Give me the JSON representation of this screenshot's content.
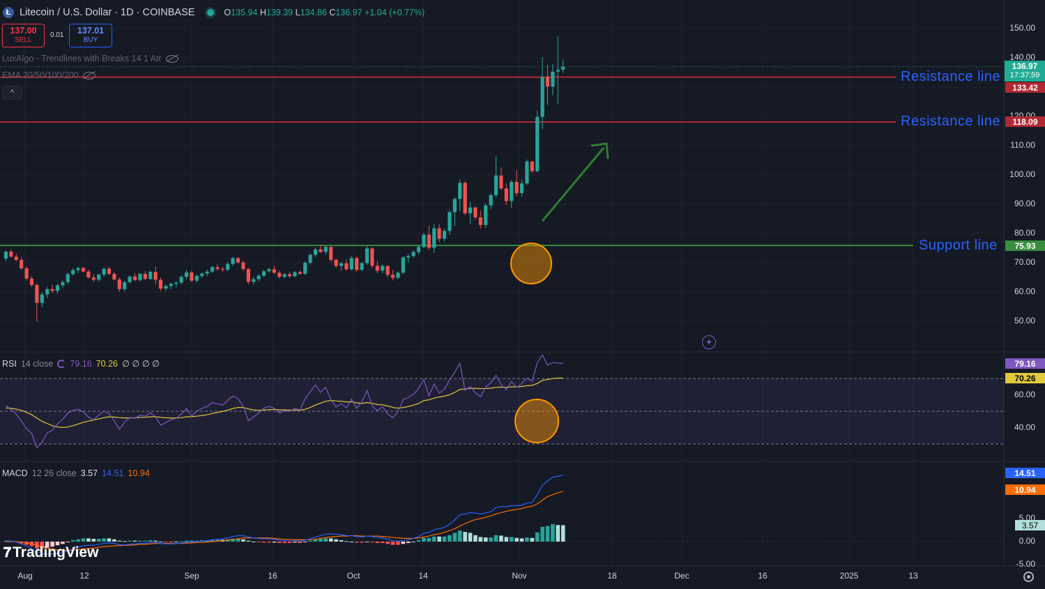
{
  "header": {
    "symbol_title": "Litecoin / U.S. Dollar · 1D · COINBASE",
    "logo_letter": "Ł",
    "ohlc": {
      "o_label": "O",
      "o": "135.94",
      "h_label": "H",
      "h": "139.39",
      "l_label": "L",
      "l": "134.86",
      "c_label": "C",
      "c": "136.97",
      "change": "+1.04 (+0.77%)"
    }
  },
  "trade": {
    "sell_price": "137.00",
    "sell_label": "SELL",
    "spread": "0.01",
    "buy_price": "137.01",
    "buy_label": "BUY"
  },
  "indicators": {
    "luxalgo": "LuxAlgo - Trendlines with Breaks 14 1 Atr",
    "ema": "EMA 20/50/100/200",
    "collapse_glyph": "^"
  },
  "rsi_panel": {
    "name": "RSI",
    "params": "14 close",
    "value1": "79.16",
    "value2": "70.26",
    "extras": "∅ ∅ ∅ ∅"
  },
  "macd_panel": {
    "name": "MACD",
    "params": "12 26 close",
    "hist": "3.57",
    "macd": "14.51",
    "signal": "10.94"
  },
  "annotations": {
    "resistance_1": "Resistance line",
    "resistance_2": "Resistance line",
    "support": "Support line"
  },
  "price_tags": {
    "last_price": "136.97",
    "countdown": "17:37:59",
    "res1": "133.42",
    "res2": "118.09",
    "support": "75.93",
    "rsi_val": "79.16",
    "rsi_ma": "70.26",
    "macd_line": "14.51",
    "macd_signal": "10.94",
    "macd_hist": "3.57"
  },
  "price_axis": [
    "150.00",
    "140.00",
    "120.00",
    "110.00",
    "100.00",
    "90.00",
    "80.00",
    "70.00",
    "60.00",
    "50.00"
  ],
  "rsi_axis": [
    "60.00",
    "40.00"
  ],
  "macd_axis": [
    "5.00",
    "0.00",
    "-5.00"
  ],
  "time_axis": [
    "Aug",
    "12",
    "Sep",
    "16",
    "Oct",
    "14",
    "Nov",
    "18",
    "Dec",
    "16",
    "2025",
    "13"
  ],
  "watermark": "TradingView",
  "colors": {
    "background": "#161a25",
    "up": "#26a69a",
    "down": "#ef5350",
    "resistance": "#b22833",
    "support": "#388e3c",
    "annotation": "#2962ff",
    "rsi": "#7e57c2",
    "rsi_ma": "#e0c93b",
    "macd": "#2962ff",
    "signal": "#ff6d00",
    "highlight": "#ff9800"
  },
  "chart_data": {
    "type": "candlestick",
    "symbol": "LTC/USD",
    "timeframe": "1D",
    "price_ylim": [
      45,
      152
    ],
    "levels": {
      "resistance": [
        133.42,
        118.09
      ],
      "support": [
        75.93
      ]
    },
    "candles": [
      [
        71.4,
        74.2,
        70.6,
        73.8
      ],
      [
        73.8,
        74.6,
        71.8,
        72.1
      ],
      [
        72.1,
        73.2,
        70.4,
        71.0
      ],
      [
        71.0,
        72.0,
        67.6,
        68.1
      ],
      [
        68.1,
        68.8,
        63.9,
        64.6
      ],
      [
        64.6,
        65.4,
        61.8,
        62.4
      ],
      [
        62.4,
        62.9,
        50.0,
        56.3
      ],
      [
        56.3,
        60.0,
        54.8,
        59.2
      ],
      [
        59.2,
        61.8,
        58.0,
        61.0
      ],
      [
        61.0,
        62.5,
        59.6,
        60.4
      ],
      [
        60.4,
        62.9,
        59.4,
        62.3
      ],
      [
        62.3,
        64.0,
        61.5,
        63.4
      ],
      [
        63.4,
        66.7,
        62.8,
        66.1
      ],
      [
        66.1,
        68.2,
        65.6,
        67.5
      ],
      [
        67.5,
        68.8,
        66.4,
        68.2
      ],
      [
        68.2,
        68.6,
        66.8,
        67.0
      ],
      [
        67.0,
        67.6,
        64.6,
        65.0
      ],
      [
        65.0,
        66.1,
        63.5,
        64.2
      ],
      [
        64.2,
        66.3,
        63.6,
        66.0
      ],
      [
        66.0,
        68.4,
        65.2,
        68.0
      ],
      [
        68.0,
        68.7,
        65.7,
        66.2
      ],
      [
        66.2,
        66.9,
        63.9,
        64.3
      ],
      [
        64.3,
        64.9,
        60.0,
        61.0
      ],
      [
        61.0,
        63.9,
        60.2,
        63.4
      ],
      [
        63.4,
        65.8,
        62.9,
        65.3
      ],
      [
        65.3,
        66.5,
        63.7,
        64.1
      ],
      [
        64.1,
        66.5,
        63.6,
        66.2
      ],
      [
        66.2,
        67.1,
        64.1,
        64.5
      ],
      [
        64.5,
        67.4,
        64.0,
        66.9
      ],
      [
        66.9,
        68.8,
        62.6,
        64.2
      ],
      [
        64.2,
        64.9,
        60.4,
        61.2
      ],
      [
        61.2,
        62.6,
        60.4,
        62.1
      ],
      [
        62.1,
        63.3,
        60.9,
        62.8
      ],
      [
        62.8,
        63.7,
        61.6,
        63.2
      ],
      [
        63.2,
        65.8,
        62.7,
        65.2
      ],
      [
        65.2,
        67.6,
        64.3,
        66.7
      ],
      [
        66.7,
        67.3,
        63.4,
        63.9
      ],
      [
        63.9,
        66.1,
        63.3,
        65.5
      ],
      [
        65.5,
        66.7,
        64.8,
        66.3
      ],
      [
        66.3,
        67.7,
        65.4,
        67.0
      ],
      [
        67.0,
        69.0,
        66.6,
        68.5
      ],
      [
        68.5,
        69.5,
        67.2,
        67.9
      ],
      [
        67.9,
        68.6,
        66.8,
        67.6
      ],
      [
        67.6,
        70.2,
        67.1,
        69.6
      ],
      [
        69.6,
        72.1,
        68.9,
        71.6
      ],
      [
        71.6,
        72.0,
        69.7,
        70.1
      ],
      [
        70.1,
        70.8,
        67.2,
        67.9
      ],
      [
        67.9,
        68.3,
        62.6,
        63.5
      ],
      [
        63.5,
        65.2,
        62.4,
        64.4
      ],
      [
        64.4,
        66.1,
        63.7,
        65.6
      ],
      [
        65.6,
        67.6,
        65.0,
        67.1
      ],
      [
        67.1,
        68.3,
        66.6,
        67.8
      ],
      [
        67.8,
        69.0,
        66.1,
        66.6
      ],
      [
        66.6,
        67.3,
        64.7,
        65.2
      ],
      [
        65.2,
        66.5,
        64.6,
        66.1
      ],
      [
        66.1,
        66.9,
        64.8,
        65.4
      ],
      [
        65.4,
        67.1,
        65.0,
        66.8
      ],
      [
        66.8,
        67.3,
        65.9,
        66.2
      ],
      [
        66.2,
        70.5,
        65.8,
        70.0
      ],
      [
        70.0,
        73.2,
        69.4,
        72.7
      ],
      [
        72.7,
        75.2,
        71.9,
        74.6
      ],
      [
        74.6,
        76.0,
        73.2,
        73.7
      ],
      [
        73.7,
        75.8,
        72.8,
        75.4
      ],
      [
        75.4,
        75.6,
        70.3,
        71.0
      ],
      [
        71.0,
        71.5,
        68.2,
        68.9
      ],
      [
        68.9,
        70.3,
        67.2,
        69.8
      ],
      [
        69.8,
        71.1,
        67.3,
        67.8
      ],
      [
        67.8,
        72.3,
        67.2,
        71.6
      ],
      [
        71.6,
        72.1,
        66.9,
        67.6
      ],
      [
        67.6,
        70.3,
        67.1,
        69.9
      ],
      [
        69.9,
        75.6,
        69.3,
        74.9
      ],
      [
        74.9,
        75.3,
        68.2,
        69.0
      ],
      [
        69.0,
        70.6,
        66.5,
        67.3
      ],
      [
        67.3,
        69.4,
        66.4,
        68.9
      ],
      [
        68.9,
        69.2,
        65.1,
        65.9
      ],
      [
        65.9,
        67.6,
        64.0,
        64.9
      ],
      [
        64.9,
        67.1,
        64.4,
        66.6
      ],
      [
        66.6,
        72.3,
        66.1,
        71.8
      ],
      [
        71.8,
        73.0,
        70.0,
        72.3
      ],
      [
        72.3,
        74.4,
        71.6,
        73.7
      ],
      [
        73.7,
        76.2,
        72.8,
        75.4
      ],
      [
        75.4,
        80.2,
        75.0,
        79.6
      ],
      [
        79.6,
        82.7,
        74.4,
        75.1
      ],
      [
        75.1,
        83.4,
        73.4,
        81.8
      ],
      [
        81.8,
        83.2,
        77.1,
        78.2
      ],
      [
        78.2,
        81.6,
        77.3,
        80.9
      ],
      [
        80.9,
        88.1,
        79.6,
        87.3
      ],
      [
        87.3,
        92.4,
        82.6,
        91.8
      ],
      [
        91.8,
        98.6,
        87.6,
        97.3
      ],
      [
        97.3,
        97.9,
        86.2,
        86.9
      ],
      [
        86.9,
        90.8,
        83.2,
        88.9
      ],
      [
        88.9,
        89.3,
        84.8,
        85.5
      ],
      [
        85.5,
        87.8,
        81.6,
        82.9
      ],
      [
        82.9,
        90.4,
        81.9,
        89.6
      ],
      [
        89.6,
        93.8,
        88.2,
        93.1
      ],
      [
        93.1,
        106.5,
        92.2,
        99.8
      ],
      [
        99.8,
        102.6,
        94.8,
        95.4
      ],
      [
        95.4,
        97.1,
        89.8,
        91.1
      ],
      [
        91.1,
        98.3,
        88.7,
        97.6
      ],
      [
        97.6,
        101.7,
        92.8,
        93.8
      ],
      [
        93.8,
        98.3,
        92.6,
        97.1
      ],
      [
        97.1,
        105.3,
        96.5,
        104.6
      ],
      [
        104.6,
        104.8,
        100.6,
        101.3
      ],
      [
        101.3,
        121.9,
        100.9,
        119.8
      ],
      [
        119.8,
        140.2,
        115.6,
        133.5
      ],
      [
        133.5,
        137.6,
        124.0,
        130.2
      ],
      [
        130.2,
        137.8,
        127.2,
        135.3
      ],
      [
        135.3,
        147.3,
        124.1,
        135.9
      ],
      [
        135.94,
        139.39,
        134.86,
        136.97
      ]
    ],
    "rsi": {
      "name": "RSI 14 close",
      "ylim": [
        20,
        95
      ],
      "bands": [
        70,
        50,
        30
      ],
      "rsi": [
        53.6,
        51.0,
        48.2,
        43.9,
        39.3,
        36.4,
        27.6,
        31.1,
        36.8,
        38.4,
        42.3,
        45.1,
        48.8,
        50.6,
        51.2,
        49.6,
        46.4,
        44.7,
        47.7,
        50.1,
        48.6,
        44.2,
        39.0,
        43.3,
        46.2,
        45.7,
        47.5,
        47.0,
        49.0,
        46.8,
        41.5,
        43.1,
        44.8,
        45.7,
        48.3,
        51.6,
        47.0,
        50.0,
        51.7,
        52.9,
        55.2,
        54.6,
        53.7,
        56.8,
        59.3,
        57.6,
        53.1,
        44.3,
        46.5,
        49.1,
        51.9,
        53.0,
        51.9,
        49.1,
        50.4,
        49.8,
        51.8,
        50.7,
        57.6,
        62.0,
        66.0,
        61.6,
        64.5,
        57.0,
        52.6,
        54.7,
        52.0,
        57.4,
        51.8,
        55.9,
        62.6,
        53.2,
        50.4,
        52.8,
        48.3,
        46.0,
        49.8,
        57.1,
        58.4,
        60.3,
        63.9,
        69.5,
        59.5,
        66.6,
        61.1,
        63.6,
        68.8,
        73.9,
        79.3,
        62.8,
        65.1,
        61.3,
        58.9,
        64.8,
        67.5,
        71.9,
        66.3,
        63.1,
        68.1,
        64.5,
        67.0,
        70.2,
        68.3,
        79.6,
        84.3,
        78.1,
        79.7,
        79.4,
        79.16
      ],
      "rsi_ma": [
        52.0,
        51.8,
        51.3,
        50.5,
        49.3,
        47.9,
        45.8,
        43.9,
        42.5,
        41.2,
        40.4,
        40.1,
        40.4,
        41.2,
        42.2,
        43.2,
        44.0,
        44.6,
        45.3,
        46.1,
        46.6,
        46.5,
        46.1,
        45.9,
        45.9,
        46.0,
        46.2,
        46.3,
        46.6,
        46.7,
        46.3,
        46.0,
        45.9,
        45.9,
        46.1,
        46.6,
        46.7,
        47.0,
        47.4,
        47.9,
        48.6,
        49.3,
        49.9,
        50.7,
        51.7,
        52.3,
        52.3,
        51.4,
        50.8,
        50.6,
        50.7,
        51.0,
        51.1,
        50.9,
        50.8,
        50.7,
        50.7,
        50.6,
        51.2,
        52.3,
        53.8,
        54.9,
        56.1,
        56.6,
        56.3,
        56.1,
        55.7,
        55.8,
        55.1,
        54.8,
        55.3,
        54.8,
        54.1,
        53.9,
        53.2,
        52.3,
        51.9,
        52.3,
        52.9,
        53.7,
        54.8,
        56.5,
        57.0,
        58.0,
        58.7,
        59.2,
        60.1,
        61.5,
        63.3,
        63.6,
        64.0,
        64.0,
        63.8,
        63.9,
        64.1,
        64.6,
        64.7,
        64.6,
        64.9,
        64.9,
        65.1,
        65.6,
        65.8,
        67.0,
        68.8,
        69.4,
        70.0,
        70.3,
        70.26
      ]
    },
    "macd": {
      "name": "MACD 12 26 close",
      "ylim": [
        -7,
        23
      ],
      "zero": 0,
      "macd": [
        0.2,
        0.1,
        -0.1,
        -0.5,
        -1.0,
        -1.5,
        -2.3,
        -2.6,
        -2.7,
        -2.7,
        -2.6,
        -2.4,
        -2.0,
        -1.6,
        -1.2,
        -0.9,
        -0.8,
        -0.8,
        -0.6,
        -0.4,
        -0.3,
        -0.4,
        -0.7,
        -0.7,
        -0.6,
        -0.5,
        -0.4,
        -0.4,
        -0.2,
        -0.2,
        -0.4,
        -0.5,
        -0.5,
        -0.4,
        -0.3,
        -0.1,
        -0.1,
        0.0,
        0.1,
        0.2,
        0.4,
        0.5,
        0.6,
        0.8,
        1.1,
        1.3,
        1.3,
        1.0,
        0.8,
        0.7,
        0.6,
        0.6,
        0.5,
        0.3,
        0.2,
        0.2,
        0.2,
        0.1,
        0.3,
        0.6,
        1.0,
        1.3,
        1.6,
        1.7,
        1.6,
        1.5,
        1.3,
        1.3,
        1.1,
        1.0,
        1.2,
        1.1,
        0.9,
        0.8,
        0.5,
        0.2,
        0.1,
        0.2,
        0.4,
        0.7,
        1.1,
        1.8,
        2.0,
        2.6,
        2.8,
        3.1,
        3.8,
        4.7,
        5.8,
        6.0,
        6.3,
        6.2,
        6.0,
        6.2,
        6.5,
        7.4,
        7.6,
        7.6,
        7.8,
        7.8,
        7.9,
        8.4,
        8.5,
        10.2,
        12.2,
        13.2,
        14.0,
        14.2,
        14.51
      ],
      "signal": [
        0.0,
        0.0,
        0.0,
        -0.1,
        -0.3,
        -0.5,
        -0.8,
        -1.1,
        -1.4,
        -1.6,
        -1.8,
        -1.9,
        -1.9,
        -1.9,
        -1.7,
        -1.6,
        -1.5,
        -1.4,
        -1.2,
        -1.1,
        -1.0,
        -0.9,
        -0.9,
        -0.8,
        -0.8,
        -0.7,
        -0.6,
        -0.6,
        -0.5,
        -0.4,
        -0.4,
        -0.4,
        -0.4,
        -0.4,
        -0.4,
        -0.3,
        -0.3,
        -0.2,
        -0.2,
        -0.1,
        0.0,
        0.1,
        0.2,
        0.3,
        0.5,
        0.6,
        0.8,
        0.8,
        0.8,
        0.8,
        0.8,
        0.8,
        0.7,
        0.6,
        0.5,
        0.5,
        0.4,
        0.4,
        0.4,
        0.4,
        0.5,
        0.7,
        0.9,
        1.0,
        1.1,
        1.2,
        1.2,
        1.3,
        1.3,
        1.2,
        1.2,
        1.2,
        1.2,
        1.1,
        1.0,
        0.9,
        0.8,
        0.7,
        0.7,
        0.7,
        0.8,
        1.0,
        1.2,
        1.5,
        1.7,
        2.0,
        2.4,
        2.8,
        3.4,
        3.9,
        4.4,
        4.8,
        5.0,
        5.3,
        5.6,
        6.0,
        6.3,
        6.6,
        6.8,
        7.0,
        7.2,
        7.5,
        7.7,
        8.2,
        9.0,
        9.8,
        10.2,
        10.6,
        10.94
      ]
    }
  }
}
